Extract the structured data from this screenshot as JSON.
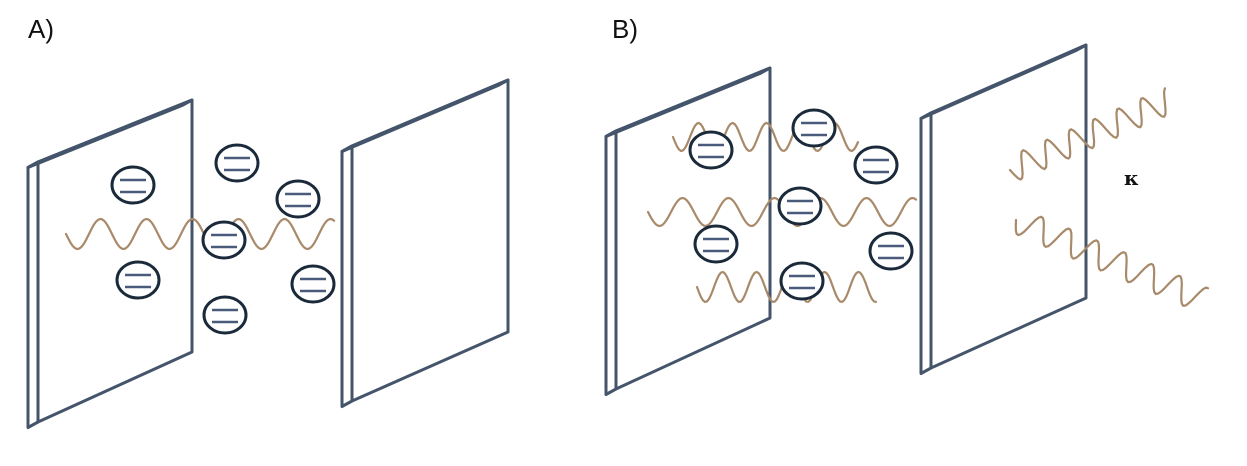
{
  "panels": [
    {
      "id": "A",
      "label": "A)"
    },
    {
      "id": "B",
      "label": "B)"
    }
  ],
  "loss_label": "κ",
  "colors": {
    "mirror_stroke": "#44546a",
    "mirror_face": "#ffffff",
    "atom_stroke": "#1a2a3a",
    "level_line": "#4a5a7a",
    "wave": "#a88a6a"
  },
  "elements": {
    "mirror": "cavity-mirror",
    "atom": "two-level-atom",
    "wave": "photon-wave"
  }
}
